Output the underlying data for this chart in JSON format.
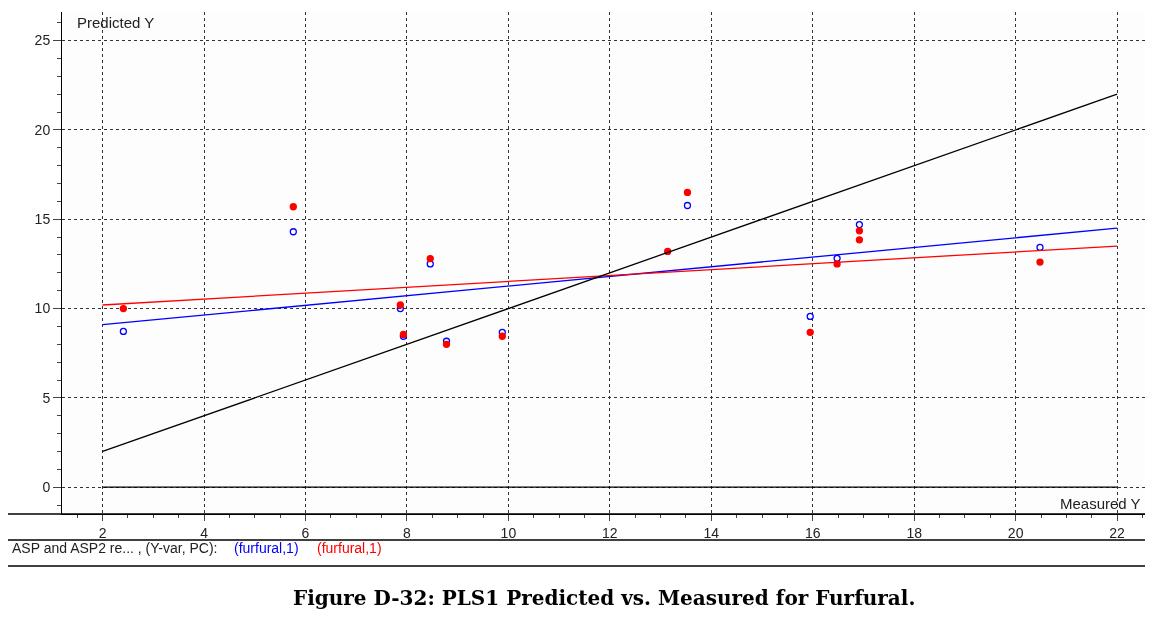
{
  "chart_data": {
    "type": "scatter",
    "title": "Figure D-32: PLS1 Predicted vs. Measured for Furfural.",
    "xlabel": "Measured Y",
    "ylabel": "Predicted Y",
    "annotations": [
      "ASP and ASP2 re... , (Y-var, PC):"
    ],
    "xlim": [
      1.2,
      22.55
    ],
    "xticks": [
      2,
      4,
      6,
      8,
      10,
      12,
      14,
      16,
      18,
      20,
      22
    ],
    "ylim": [
      -1.5,
      26.6
    ],
    "yticks": [
      0,
      5,
      10,
      15,
      20,
      25
    ],
    "grid": true,
    "ref_lines": [
      {
        "axis": "y",
        "value": 0,
        "color": "#000000"
      }
    ],
    "series": [
      {
        "name": "(furfural,1)",
        "color": "#0000ff",
        "marker": "circle-open",
        "x": [
          2.41,
          5.76,
          7.87,
          7.93,
          8.46,
          8.78,
          9.88,
          13.53,
          15.95,
          16.48,
          16.92,
          20.48
        ],
        "values": [
          8.72,
          14.3,
          10.0,
          8.45,
          12.5,
          8.17,
          8.67,
          15.77,
          9.56,
          12.81,
          14.7,
          13.42
        ]
      },
      {
        "name": "(furfural,1)",
        "color": "#ff0000",
        "marker": "circle",
        "x": [
          2.41,
          5.76,
          7.87,
          7.93,
          8.46,
          8.78,
          9.88,
          13.14,
          13.53,
          15.95,
          16.48,
          16.92,
          16.92,
          20.48
        ],
        "values": [
          10.0,
          15.7,
          10.2,
          8.55,
          12.8,
          8.0,
          8.45,
          13.2,
          16.5,
          8.67,
          12.5,
          14.35,
          13.85,
          12.6
        ]
      },
      {
        "type": "line",
        "marker": "none",
        "color": "#0000ff",
        "x": [
          2,
          22
        ],
        "values": [
          9.1,
          14.5
        ]
      },
      {
        "type": "line",
        "marker": "none",
        "color": "#ff0000",
        "x": [
          2,
          22
        ],
        "values": [
          10.2,
          13.5
        ]
      },
      {
        "type": "line",
        "marker": "none",
        "color": "#000000",
        "x": [
          2,
          22
        ],
        "values": [
          2,
          22
        ]
      }
    ]
  }
}
